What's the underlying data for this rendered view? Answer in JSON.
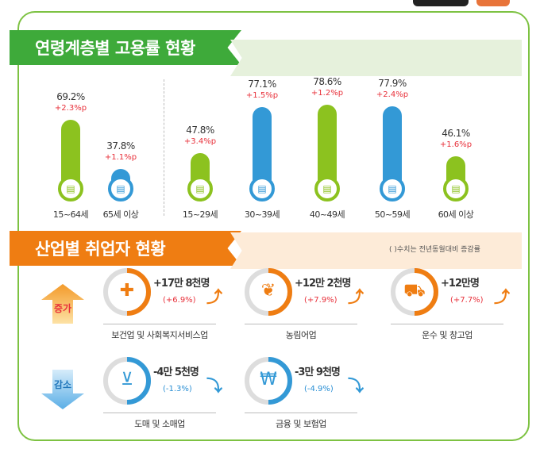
{
  "colors": {
    "green": "#8cc21f",
    "blue": "#3399d6",
    "orange": "#ef7d12",
    "red": "#e8303a",
    "frame": "#7dc242"
  },
  "section1": {
    "title": "연령계층별 고용률 현황"
  },
  "chart_data": {
    "type": "bar",
    "categories": [
      "15~64세",
      "65세 이상",
      "15~29세",
      "30~39세",
      "40~49세",
      "50~59세",
      "60세 이상"
    ],
    "values": [
      69.2,
      37.8,
      47.8,
      77.1,
      78.6,
      77.9,
      46.1
    ],
    "value_labels": [
      "69.2%",
      "37.8%",
      "47.8%",
      "77.1%",
      "78.6%",
      "77.9%",
      "46.1%"
    ],
    "change_labels": [
      "+2.3%p",
      "+1.1%p",
      "+3.4%p",
      "+1.5%p",
      "+1.2%p",
      "+2.4%p",
      "+1.6%p"
    ],
    "changes": [
      2.3,
      1.1,
      3.4,
      1.5,
      1.2,
      2.4,
      1.6
    ],
    "bar_colors": [
      "#8cc21f",
      "#3399d6",
      "#8cc21f",
      "#3399d6",
      "#8cc21f",
      "#3399d6",
      "#8cc21f"
    ],
    "ylim": [
      0,
      100
    ],
    "unit": "%"
  },
  "section2": {
    "title": "산업별 취업자 현황",
    "note": "( )수치는 전년동월대비 증감률",
    "increase_label": "증가",
    "decrease_label": "감소",
    "increase": [
      {
        "name": "보건업 및 사회복지서비스업",
        "change": "+17만 8천명",
        "pct": "(+6.9%)",
        "icon": "first-aid-kit-icon"
      },
      {
        "name": "농림어업",
        "change": "+12만 2천명",
        "pct": "(+7.9%)",
        "icon": "wheat-icon"
      },
      {
        "name": "운수 및 창고업",
        "change": "+12만명",
        "pct": "(+7.7%)",
        "icon": "truck-icon"
      }
    ],
    "decrease": [
      {
        "name": "도매 및 소매업",
        "change": "-4만 5천명",
        "pct": "(-1.3%)",
        "icon": "shopping-basket-icon"
      },
      {
        "name": "금융 및 보험업",
        "change": "-3만 9천명",
        "pct": "(-4.9%)",
        "icon": "laptop-won-icon"
      }
    ]
  }
}
